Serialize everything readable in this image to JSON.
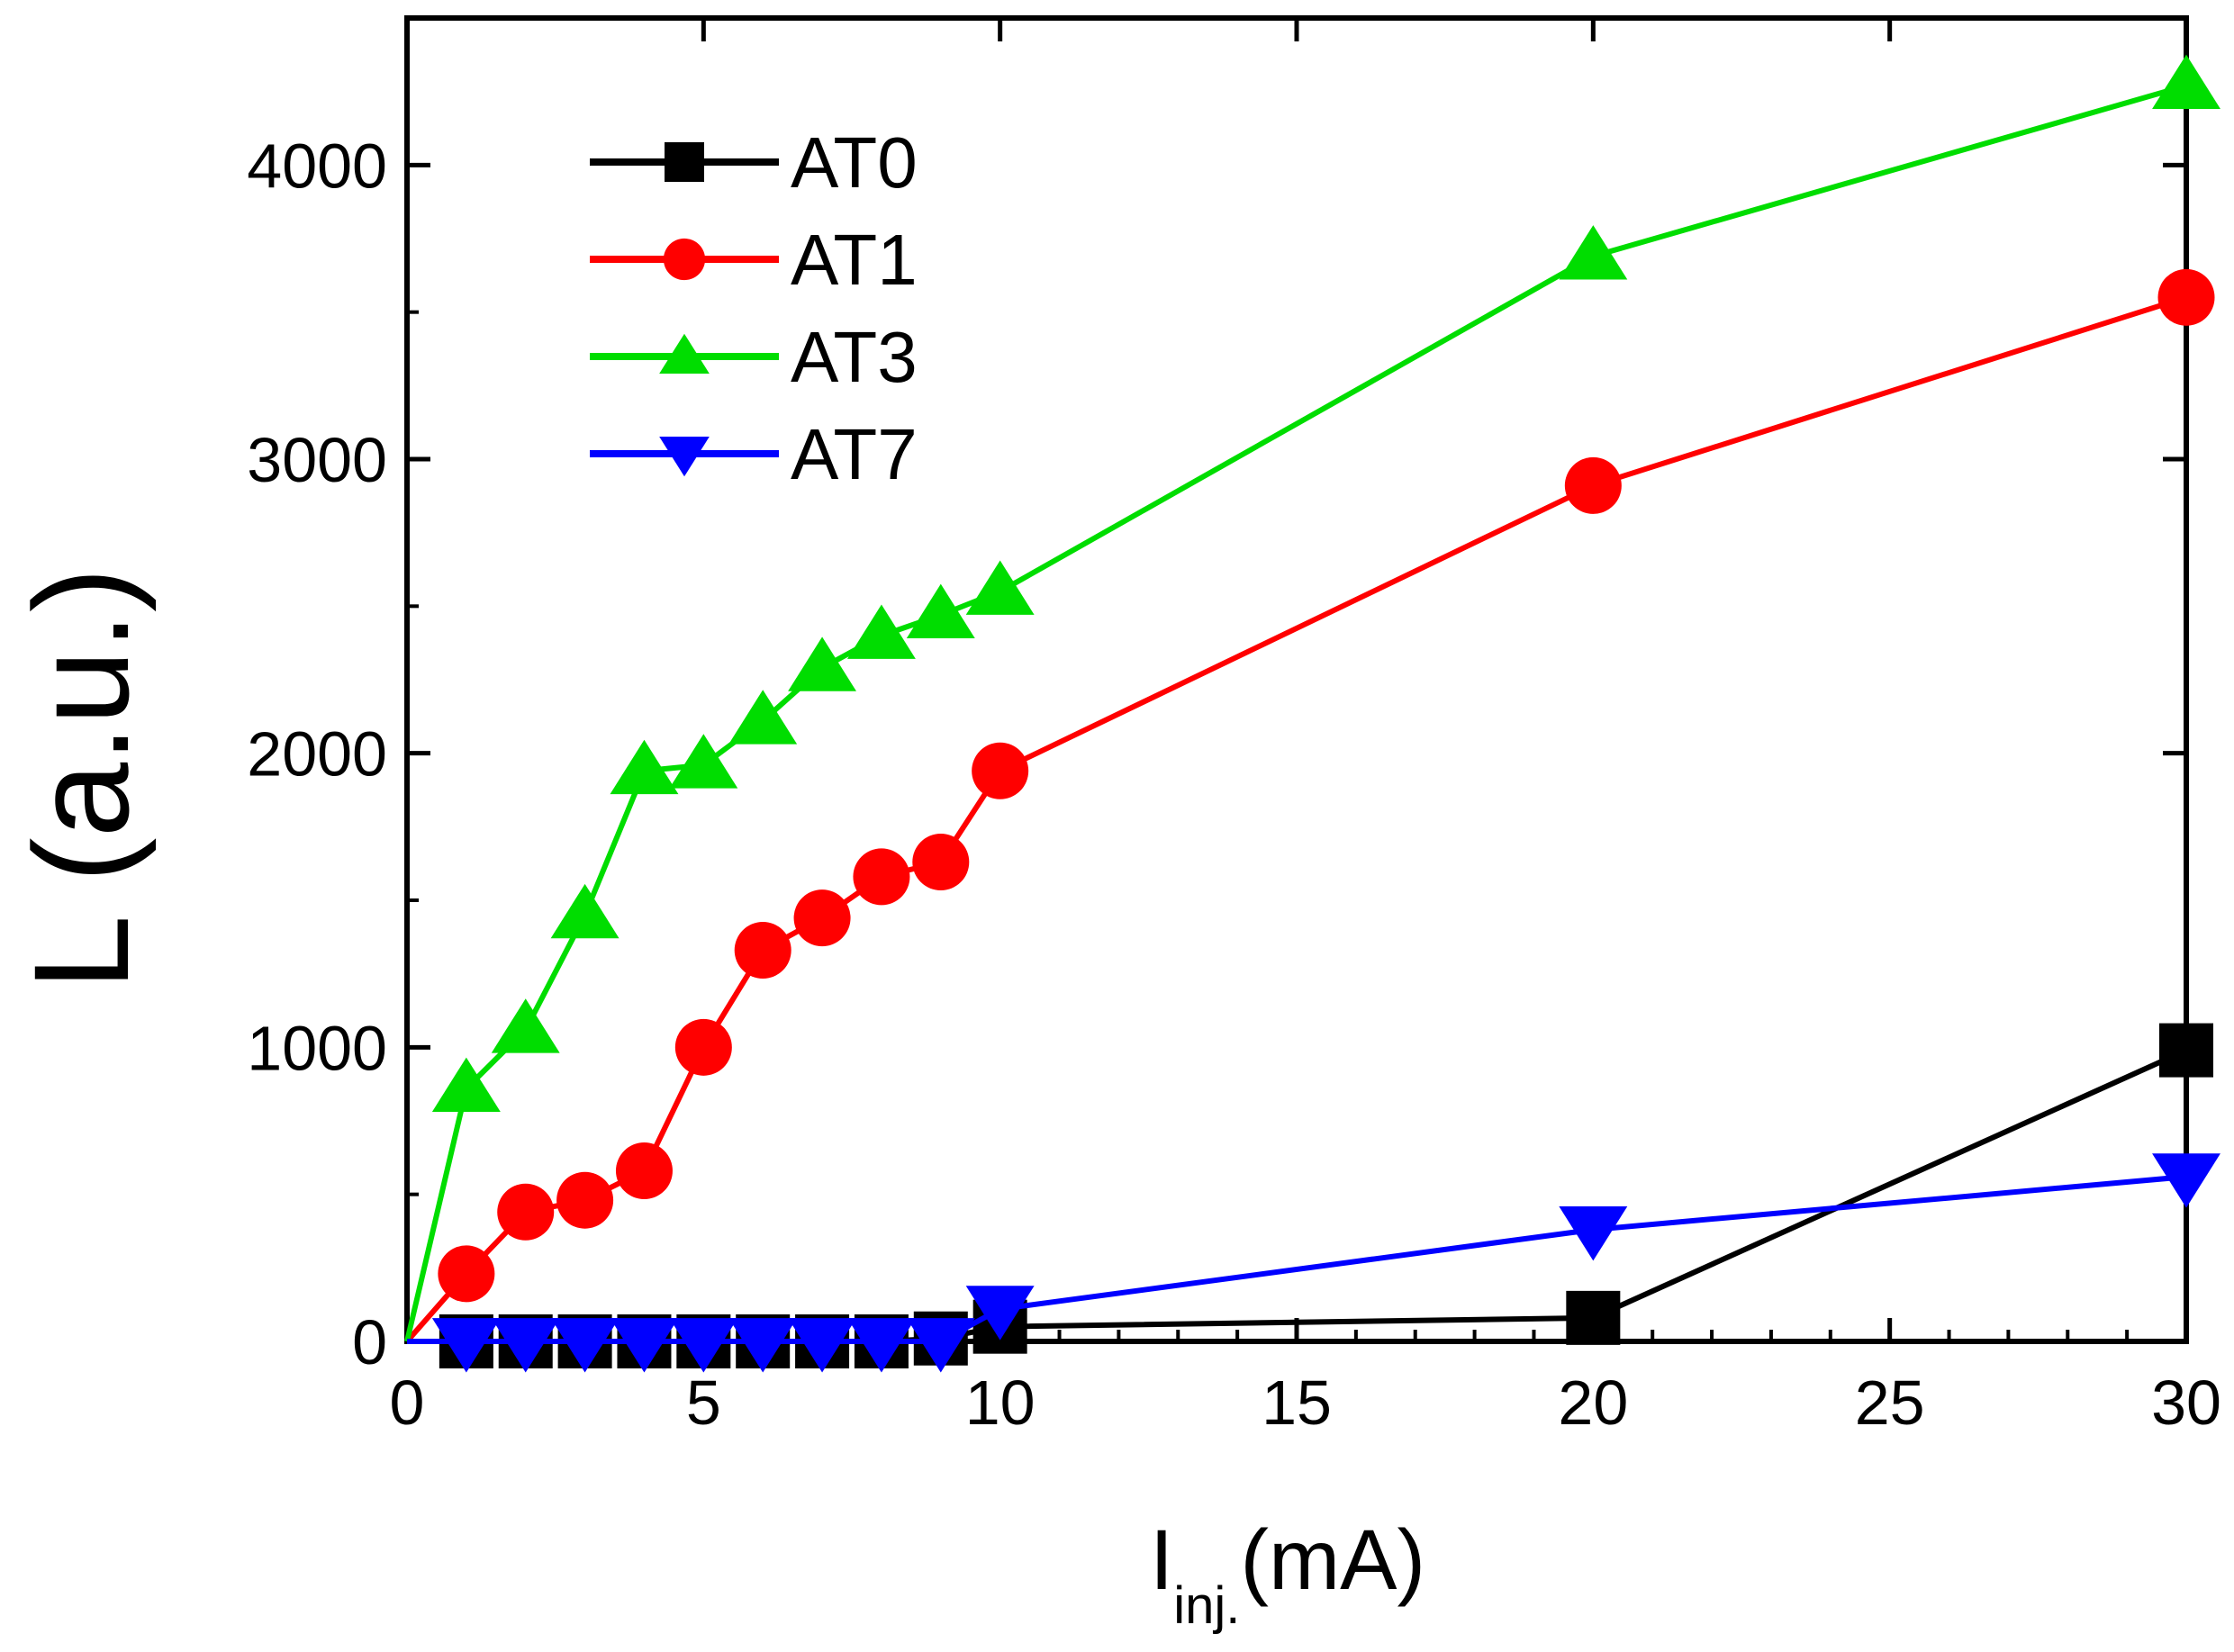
{
  "chart_data": {
    "type": "line",
    "title": "",
    "xlabel": {
      "main": "I",
      "sub": "inj.",
      "unit": "(mA)"
    },
    "ylabel": "L (a.u.)",
    "xlim": [
      0,
      30
    ],
    "ylim": [
      0,
      4500
    ],
    "x_ticks": [
      0,
      5,
      10,
      15,
      20,
      25,
      30
    ],
    "x_tick_labels": [
      "0",
      "5",
      "10",
      "15",
      "20",
      "25",
      "30"
    ],
    "y_ticks": [
      0,
      1000,
      2000,
      3000,
      4000
    ],
    "y_tick_labels": [
      "0",
      "1000",
      "2000",
      "3000",
      "4000"
    ],
    "x_minor_step": 1,
    "y_minor_step": 500,
    "grid": false,
    "legend_position": "top-left",
    "series": [
      {
        "name": "AT0",
        "color": "#000000",
        "marker": "square",
        "x": [
          0,
          1,
          2,
          3,
          4,
          5,
          6,
          7,
          8,
          9,
          10,
          20,
          30
        ],
        "y": [
          0,
          0,
          0,
          0,
          0,
          0,
          0,
          0,
          0,
          10,
          50,
          80,
          990
        ]
      },
      {
        "name": "AT1",
        "color": "#ff0000",
        "marker": "circle",
        "x": [
          0,
          1,
          2,
          3,
          4,
          5,
          6,
          7,
          8,
          9,
          10,
          20,
          30
        ],
        "y": [
          0,
          230,
          440,
          480,
          580,
          1000,
          1330,
          1440,
          1580,
          1630,
          1940,
          2910,
          3550
        ]
      },
      {
        "name": "AT3",
        "color": "#00dd00",
        "marker": "triangle-up",
        "x": [
          0,
          1,
          2,
          3,
          4,
          5,
          6,
          7,
          8,
          9,
          10,
          20,
          30
        ],
        "y": [
          0,
          860,
          1060,
          1450,
          1940,
          1960,
          2110,
          2290,
          2400,
          2470,
          2550,
          3690,
          4270
        ]
      },
      {
        "name": "AT7",
        "color": "#0000ff",
        "marker": "triangle-down",
        "x": [
          0,
          1,
          2,
          3,
          4,
          5,
          6,
          7,
          8,
          9,
          10,
          20,
          30
        ],
        "y": [
          0,
          0,
          0,
          0,
          0,
          0,
          0,
          0,
          0,
          0,
          110,
          380,
          560
        ]
      }
    ]
  }
}
